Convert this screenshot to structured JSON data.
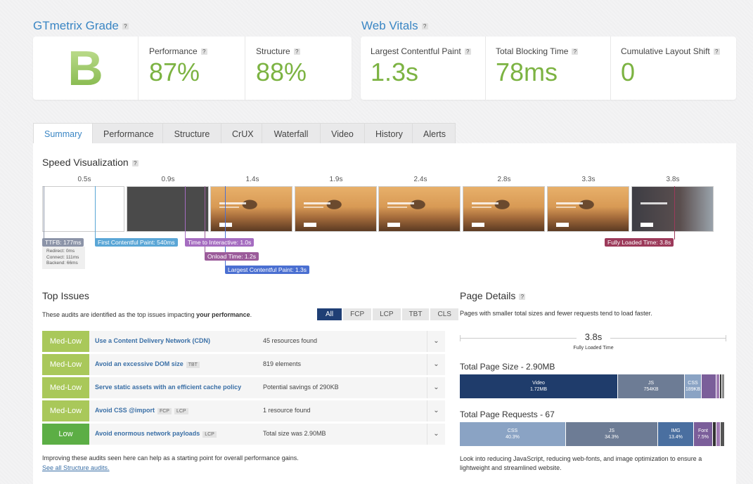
{
  "gtmetrix": {
    "title": "GTmetrix Grade",
    "grade": "B",
    "performance_label": "Performance",
    "performance_value": "87%",
    "structure_label": "Structure",
    "structure_value": "88%"
  },
  "vitals": {
    "title": "Web Vitals",
    "lcp_label": "Largest Contentful Paint",
    "lcp_value": "1.3s",
    "tbt_label": "Total Blocking Time",
    "tbt_value": "78ms",
    "cls_label": "Cumulative Layout Shift",
    "cls_value": "0"
  },
  "help_glyph": "?",
  "tabs": [
    "Summary",
    "Performance",
    "Structure",
    "CrUX",
    "Waterfall",
    "Video",
    "History",
    "Alerts"
  ],
  "speed": {
    "title": "Speed Visualization",
    "ticks": [
      "0.5s",
      "0.9s",
      "1.4s",
      "1.9s",
      "2.4s",
      "2.8s",
      "3.3s",
      "3.8s"
    ],
    "ttfb": "TTFB: 177ms",
    "ttfb_details": [
      "Redirect: 0ms",
      "Connect: 111ms",
      "Backend: 66ms"
    ],
    "fcp": "First Contentful Paint: 540ms",
    "tti": "Time to Interactive: 1.0s",
    "onload": "Onload Time: 1.2s",
    "lcp": "Largest Contentful Paint: 1.3s",
    "fully_loaded": "Fully Loaded Time: 3.8s"
  },
  "top_issues": {
    "title": "Top Issues",
    "intro_pre": "These audits are identified as the top issues impacting ",
    "intro_bold": "your performance",
    "intro_post": ".",
    "filters": [
      "All",
      "FCP",
      "LCP",
      "TBT",
      "CLS"
    ],
    "rows": [
      {
        "grade": "Med-Low",
        "title": "Use a Content Delivery Network (CDN)",
        "tags": [],
        "value": "45 resources found"
      },
      {
        "grade": "Med-Low",
        "title": "Avoid an excessive DOM size",
        "tags": [
          "TBT"
        ],
        "value": "819 elements"
      },
      {
        "grade": "Med-Low",
        "title": "Serve static assets with an efficient cache policy",
        "tags": [],
        "value": "Potential savings of 290KB"
      },
      {
        "grade": "Med-Low",
        "title": "Avoid CSS @import",
        "tags": [
          "FCP",
          "LCP"
        ],
        "value": "1 resource found"
      },
      {
        "grade": "Low",
        "title": "Avoid enormous network payloads",
        "tags": [
          "LCP"
        ],
        "value": "Total size was 2.90MB"
      }
    ],
    "footer": "Improving these audits seen here can help as a starting point for overall performance gains.",
    "footer_link": "See all Structure audits."
  },
  "page_details": {
    "title": "Page Details",
    "intro": "Pages with smaller total sizes and fewer requests tend to load faster.",
    "fully_loaded_value": "3.8s",
    "fully_loaded_label": "Fully Loaded Time",
    "size_title": "Total Page Size - 2.90MB",
    "size_segments": [
      {
        "name": "Video",
        "value": "1.72MB",
        "color": "#1f3c6b"
      },
      {
        "name": "JS",
        "value": "754KB",
        "color": "#6d7c95"
      },
      {
        "name": "CSS",
        "value": "189KB",
        "color": "#8aa3c4"
      },
      {
        "name": "",
        "value": "",
        "color": "#7b5e9a"
      },
      {
        "name": "",
        "value": "",
        "color": "#a07bb3"
      },
      {
        "name": "",
        "value": "",
        "color": "#333"
      },
      {
        "name": "",
        "value": "",
        "color": "#8a8a8a"
      }
    ],
    "requests_title": "Total Page Requests - 67",
    "request_segments": [
      {
        "name": "CSS",
        "value": "40.3%",
        "color": "#8aa3c4"
      },
      {
        "name": "JS",
        "value": "34.3%",
        "color": "#6d7c95"
      },
      {
        "name": "IMG",
        "value": "13.4%",
        "color": "#4a6fa0"
      },
      {
        "name": "Font",
        "value": "7.5%",
        "color": "#7b5e9a"
      },
      {
        "name": "",
        "value": "",
        "color": "#333"
      },
      {
        "name": "",
        "value": "",
        "color": "#a07bb3"
      },
      {
        "name": "",
        "value": "",
        "color": "#555"
      }
    ],
    "outro": "Look into reducing JavaScript, reducing web-fonts, and image optimization to ensure a lightweight and streamlined website."
  },
  "colors": {
    "green": "#7cb342",
    "medlow": "#a9c85a",
    "low": "#5cae45",
    "blue_title": "#3a86c4"
  }
}
